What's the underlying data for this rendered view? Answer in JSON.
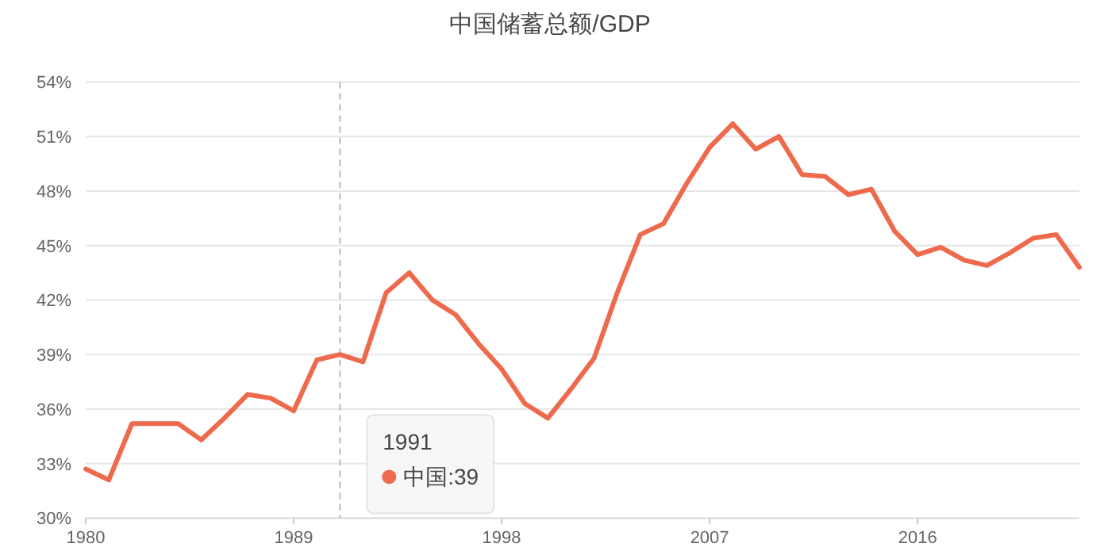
{
  "chart_data": {
    "type": "line",
    "title": "中国储蓄总额/GDP",
    "x": [
      1980,
      1981,
      1982,
      1983,
      1984,
      1985,
      1986,
      1987,
      1988,
      1989,
      1990,
      1991,
      1992,
      1993,
      1994,
      1995,
      1996,
      1997,
      1998,
      1999,
      2000,
      2001,
      2002,
      2003,
      2004,
      2005,
      2006,
      2007,
      2008,
      2009,
      2010,
      2011,
      2012,
      2013,
      2014,
      2015,
      2016,
      2017,
      2018,
      2019,
      2020,
      2021,
      2022,
      2023
    ],
    "series": [
      {
        "color": "#ee6a4d",
        "values": [
          32.7,
          32.1,
          35.2,
          35.2,
          35.2,
          34.3,
          35.5,
          36.8,
          36.6,
          35.9,
          38.7,
          39,
          38.6,
          42.4,
          43.5,
          42.0,
          41.2,
          39.6,
          38.2,
          36.3,
          35.5,
          37.1,
          38.8,
          42.4,
          45.6,
          46.2,
          48.4,
          50.4,
          51.7,
          50.3,
          51.0,
          48.9,
          48.8,
          47.8,
          48.1,
          45.8,
          44.5,
          44.9,
          44.2,
          43.9,
          44.6,
          45.4,
          45.6,
          43.8
        ]
      }
    ],
    "xlim": [
      1980,
      2023
    ],
    "xticks": [
      1980,
      1989,
      1998,
      2007,
      2016
    ],
    "ylim": [
      30,
      54
    ],
    "yticks": [
      {
        "value": 30,
        "label": "30%"
      },
      {
        "value": 33,
        "label": "33%"
      },
      {
        "value": 36,
        "label": "36%"
      },
      {
        "value": 39,
        "label": "39%"
      },
      {
        "value": 42,
        "label": "42%"
      },
      {
        "value": 45,
        "label": "45%"
      },
      {
        "value": 48,
        "label": "48%"
      },
      {
        "value": 51,
        "label": "51%"
      },
      {
        "value": 54,
        "label": "54%"
      }
    ],
    "grid": "y",
    "marker": "none",
    "line_style": "solid",
    "ref_lines": [
      {
        "axis": "x",
        "value": 1991,
        "color": "#bbbbbb",
        "line_style": "dashed"
      }
    ],
    "annotations": [
      "1991",
      "中国:39"
    ]
  }
}
